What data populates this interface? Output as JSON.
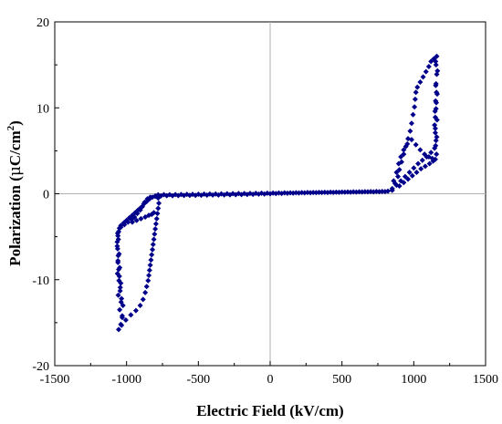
{
  "chart_data": {
    "type": "scatter",
    "xlabel": "Electric Field (kV/cm)",
    "ylabel": "Polarization (μC/cm²)",
    "ylabel_parts": {
      "main": "Polarization (",
      "mu": "μ",
      "unit": "C/cm",
      "sup": "2",
      "close": ")"
    },
    "xlim": [
      -1500,
      1500
    ],
    "ylim": [
      -20,
      20
    ],
    "xticks": [
      -1500,
      -1000,
      -500,
      0,
      500,
      1000,
      1500
    ],
    "yticks": [
      -20,
      -10,
      0,
      10,
      20
    ],
    "grid": false,
    "zero_lines": true,
    "marker": "diamond",
    "marker_color": "#00008b",
    "series": [
      {
        "points": [
          [
            -1055,
            -15.8
          ],
          [
            -1040,
            -15.2
          ],
          [
            -1030,
            -14.2
          ],
          [
            -1025,
            -13.0
          ],
          [
            -1035,
            -12.2
          ],
          [
            -1045,
            -11.3
          ],
          [
            -1040,
            -10.4
          ],
          [
            -1050,
            -9.6
          ],
          [
            -1055,
            -8.8
          ],
          [
            -1060,
            -8.0
          ],
          [
            -1058,
            -7.2
          ],
          [
            -1062,
            -6.4
          ],
          [
            -1065,
            -5.6
          ],
          [
            -1060,
            -4.9
          ],
          [
            -1055,
            -4.4
          ],
          [
            -1050,
            -4.0
          ],
          [
            -1040,
            -3.7
          ],
          [
            -1020,
            -3.4
          ],
          [
            -1000,
            -3.1
          ],
          [
            -980,
            -2.8
          ],
          [
            -960,
            -2.5
          ],
          [
            -940,
            -2.2
          ],
          [
            -920,
            -1.9
          ],
          [
            -900,
            -1.6
          ],
          [
            -880,
            -1.2
          ],
          [
            -860,
            -0.9
          ],
          [
            -840,
            -0.6
          ],
          [
            -820,
            -0.4
          ],
          [
            -800,
            -0.3
          ],
          [
            -780,
            -0.5
          ],
          [
            -775,
            -1.1
          ],
          [
            -780,
            -1.7
          ],
          [
            -785,
            -2.3
          ],
          [
            -790,
            -2.9
          ],
          [
            -795,
            -3.5
          ],
          [
            -800,
            -4.1
          ],
          [
            -805,
            -4.7
          ],
          [
            -810,
            -5.3
          ],
          [
            -815,
            -5.9
          ],
          [
            -820,
            -6.5
          ],
          [
            -825,
            -7.1
          ],
          [
            -830,
            -7.7
          ],
          [
            -835,
            -8.3
          ],
          [
            -840,
            -8.9
          ],
          [
            -845,
            -9.5
          ],
          [
            -850,
            -10.1
          ],
          [
            -860,
            -10.8
          ],
          [
            -870,
            -11.5
          ],
          [
            -885,
            -12.3
          ],
          [
            -905,
            -13.0
          ],
          [
            -935,
            -13.6
          ],
          [
            -970,
            -14.1
          ],
          [
            -1005,
            -14.7
          ],
          [
            -1035,
            -15.3
          ],
          [
            -1062,
            -4.6
          ],
          [
            -1057,
            -5.3
          ],
          [
            -1065,
            -6.1
          ],
          [
            -1052,
            -7.0
          ],
          [
            -1060,
            -7.8
          ],
          [
            -1048,
            -8.6
          ],
          [
            -1063,
            -9.3
          ],
          [
            -1053,
            -10.1
          ],
          [
            -1044,
            -10.9
          ],
          [
            -1058,
            -11.8
          ],
          [
            -1038,
            -12.6
          ],
          [
            -1048,
            -13.5
          ],
          [
            -1030,
            -14.4
          ],
          [
            -1040,
            -3.9
          ],
          [
            -1015,
            -3.6
          ],
          [
            -990,
            -3.3
          ],
          [
            -965,
            -3.0
          ],
          [
            -945,
            -2.7
          ],
          [
            -925,
            -2.3
          ],
          [
            -905,
            -1.9
          ],
          [
            -890,
            -1.5
          ],
          [
            -875,
            -1.0
          ],
          [
            -855,
            -0.6
          ],
          [
            -835,
            -0.4
          ],
          [
            -960,
            -3.3
          ],
          [
            -930,
            -3.1
          ],
          [
            -900,
            -2.9
          ],
          [
            -870,
            -2.7
          ],
          [
            -845,
            -2.5
          ],
          [
            -825,
            -2.4
          ],
          [
            -810,
            -2.2
          ],
          [
            -800,
            -0.25
          ],
          [
            -760,
            -0.24
          ],
          [
            -720,
            -0.23
          ],
          [
            -680,
            -0.22
          ],
          [
            -640,
            -0.21
          ],
          [
            -600,
            -0.2
          ],
          [
            -560,
            -0.19
          ],
          [
            -520,
            -0.18
          ],
          [
            -480,
            -0.17
          ],
          [
            -440,
            -0.16
          ],
          [
            -400,
            -0.15
          ],
          [
            -360,
            -0.14
          ],
          [
            -320,
            -0.13
          ],
          [
            -280,
            -0.12
          ],
          [
            -240,
            -0.11
          ],
          [
            -200,
            -0.09
          ],
          [
            -160,
            -0.08
          ],
          [
            -120,
            -0.06
          ],
          [
            -80,
            -0.04
          ],
          [
            -40,
            -0.02
          ],
          [
            0,
            0.0
          ],
          [
            40,
            0.02
          ],
          [
            80,
            0.04
          ],
          [
            120,
            0.06
          ],
          [
            160,
            0.08
          ],
          [
            200,
            0.09
          ],
          [
            240,
            0.11
          ],
          [
            280,
            0.12
          ],
          [
            320,
            0.13
          ],
          [
            360,
            0.14
          ],
          [
            400,
            0.15
          ],
          [
            440,
            0.16
          ],
          [
            480,
            0.17
          ],
          [
            520,
            0.18
          ],
          [
            560,
            0.19
          ],
          [
            600,
            0.2
          ],
          [
            640,
            0.21
          ],
          [
            680,
            0.22
          ],
          [
            720,
            0.23
          ],
          [
            760,
            0.24
          ],
          [
            800,
            0.25
          ],
          [
            -780,
            -0.12
          ],
          [
            -740,
            -0.11
          ],
          [
            -700,
            -0.1
          ],
          [
            -660,
            -0.09
          ],
          [
            -620,
            -0.08
          ],
          [
            -580,
            -0.07
          ],
          [
            -540,
            -0.06
          ],
          [
            -500,
            -0.05
          ],
          [
            -460,
            -0.04
          ],
          [
            -420,
            -0.03
          ],
          [
            -380,
            -0.02
          ],
          [
            -340,
            -0.01
          ],
          [
            -300,
            0.0
          ],
          [
            -260,
            0.01
          ],
          [
            -220,
            0.02
          ],
          [
            -180,
            0.03
          ],
          [
            -140,
            0.04
          ],
          [
            -100,
            0.05
          ],
          [
            -60,
            0.06
          ],
          [
            -20,
            0.07
          ],
          [
            20,
            0.08
          ],
          [
            60,
            0.09
          ],
          [
            100,
            0.1
          ],
          [
            140,
            0.11
          ],
          [
            180,
            0.12
          ],
          [
            220,
            0.13
          ],
          [
            260,
            0.14
          ],
          [
            300,
            0.15
          ],
          [
            340,
            0.16
          ],
          [
            380,
            0.17
          ],
          [
            420,
            0.18
          ],
          [
            460,
            0.19
          ],
          [
            500,
            0.2
          ],
          [
            540,
            0.21
          ],
          [
            580,
            0.22
          ],
          [
            620,
            0.23
          ],
          [
            660,
            0.24
          ],
          [
            700,
            0.25
          ],
          [
            740,
            0.26
          ],
          [
            780,
            0.27
          ],
          [
            820,
            0.3
          ],
          [
            850,
            0.6
          ],
          [
            880,
            1.0
          ],
          [
            910,
            1.5
          ],
          [
            940,
            2.0
          ],
          [
            970,
            2.5
          ],
          [
            1000,
            3.0
          ],
          [
            1030,
            3.5
          ],
          [
            1060,
            3.9
          ],
          [
            1090,
            4.3
          ],
          [
            1120,
            4.8
          ],
          [
            1145,
            5.3
          ],
          [
            1155,
            6.2
          ],
          [
            1150,
            7.1
          ],
          [
            1145,
            8.0
          ],
          [
            1150,
            8.9
          ],
          [
            1155,
            9.9
          ],
          [
            1152,
            10.8
          ],
          [
            1158,
            11.8
          ],
          [
            1155,
            12.8
          ],
          [
            1160,
            13.9
          ],
          [
            1155,
            15.0
          ],
          [
            1160,
            16.0
          ],
          [
            1140,
            15.7
          ],
          [
            1120,
            15.4
          ],
          [
            850,
            0.4
          ],
          [
            870,
            1.2
          ],
          [
            890,
            2.0
          ],
          [
            900,
            2.8
          ],
          [
            915,
            3.7
          ],
          [
            930,
            4.6
          ],
          [
            945,
            5.5
          ],
          [
            960,
            6.4
          ],
          [
            975,
            7.3
          ],
          [
            985,
            8.2
          ],
          [
            995,
            9.2
          ],
          [
            1005,
            10.1
          ],
          [
            1010,
            11.0
          ],
          [
            1015,
            11.8
          ],
          [
            1025,
            12.4
          ],
          [
            1045,
            13.0
          ],
          [
            1065,
            13.6
          ],
          [
            1085,
            14.2
          ],
          [
            1105,
            14.8
          ],
          [
            860,
            1.5
          ],
          [
            880,
            2.5
          ],
          [
            895,
            3.5
          ],
          [
            910,
            4.3
          ],
          [
            930,
            5.1
          ],
          [
            955,
            5.8
          ],
          [
            985,
            6.3
          ],
          [
            1015,
            5.7
          ],
          [
            1045,
            5.1
          ],
          [
            1075,
            4.6
          ],
          [
            1105,
            4.3
          ],
          [
            1130,
            4.1
          ],
          [
            1150,
            4.0
          ],
          [
            900,
            0.9
          ],
          [
            930,
            1.3
          ],
          [
            960,
            1.7
          ],
          [
            990,
            2.1
          ],
          [
            1020,
            2.5
          ],
          [
            1050,
            2.9
          ],
          [
            1080,
            3.2
          ],
          [
            1110,
            3.5
          ],
          [
            1135,
            3.8
          ],
          [
            1158,
            4.6
          ],
          [
            1152,
            5.6
          ],
          [
            1160,
            6.6
          ],
          [
            1150,
            7.6
          ],
          [
            1162,
            8.6
          ],
          [
            1148,
            9.6
          ],
          [
            1157,
            10.6
          ],
          [
            1163,
            11.6
          ],
          [
            1153,
            12.6
          ],
          [
            1165,
            14.3
          ],
          [
            1152,
            15.4
          ]
        ]
      }
    ]
  }
}
